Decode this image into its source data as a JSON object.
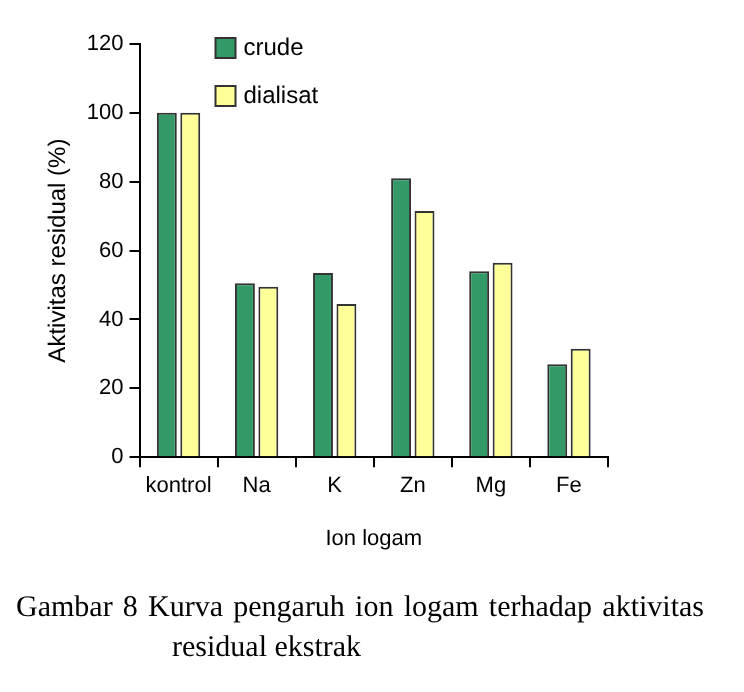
{
  "chart_data": {
    "type": "bar",
    "xlabel": "Ion logam",
    "ylabel": "Aktivitas residual (%)",
    "categories": [
      "kontrol",
      "Na",
      "K",
      "Zn",
      "Mg",
      "Fe"
    ],
    "series": [
      {
        "name": "crude",
        "color": "#339966",
        "values": [
          100,
          50.5,
          53.5,
          81,
          54,
          27
        ]
      },
      {
        "name": "dialisat",
        "color": "#ffff99",
        "values": [
          100,
          49.5,
          44.5,
          71.5,
          56.5,
          31.5
        ]
      }
    ],
    "ylim": [
      0,
      120
    ],
    "yticks": [
      0,
      20,
      40,
      60,
      80,
      100,
      120
    ],
    "grid": false,
    "legend": "top left",
    "annotations": [
      "Gambar 8 Kurva pengaruh ion logam terhadap aktivitas residual ekstrak"
    ]
  }
}
